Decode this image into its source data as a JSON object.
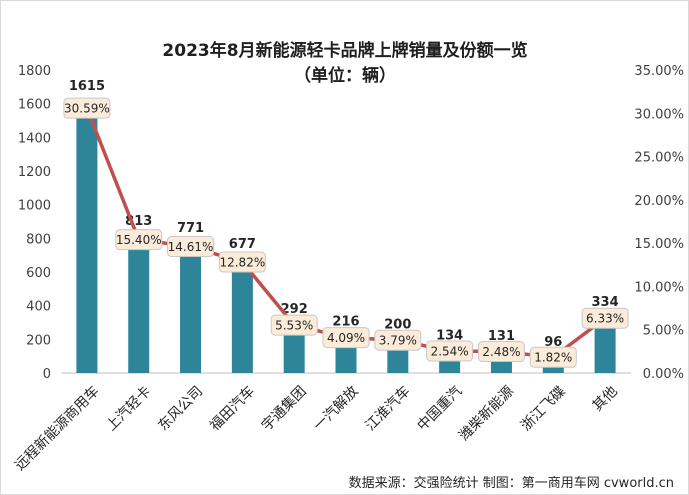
{
  "chart_data": {
    "type": "bar",
    "title": "2023年8月新能源轻卡品牌上牌销量及份额一览",
    "subtitle": "（单位：辆）",
    "categories": [
      "远程新能源商用车",
      "上汽轻卡",
      "东风公司",
      "福田汽车",
      "宇通集团",
      "一汽解放",
      "江淮汽车",
      "中国重汽",
      "潍柴新能源",
      "浙江飞碟",
      "其他"
    ],
    "series": [
      {
        "name": "销量",
        "type": "bar",
        "axis": "left",
        "color": "#2e8599",
        "values": [
          1615,
          813,
          771,
          677,
          292,
          216,
          200,
          134,
          131,
          96,
          334
        ]
      },
      {
        "name": "份额",
        "type": "line",
        "axis": "right",
        "color": "#c0504d",
        "values": [
          30.59,
          15.4,
          14.61,
          12.82,
          5.53,
          4.09,
          3.79,
          2.54,
          2.48,
          1.82,
          6.33
        ],
        "labels": [
          "30.59%",
          "15.40%",
          "14.61%",
          "12.82%",
          "5.53%",
          "4.09%",
          "3.79%",
          "2.54%",
          "2.48%",
          "1.82%",
          "6.33%"
        ]
      }
    ],
    "y_left": {
      "ylim": [
        0,
        1800
      ],
      "ticks": [
        "0",
        "200",
        "400",
        "600",
        "800",
        "1000",
        "1200",
        "1400",
        "1600",
        "1800"
      ]
    },
    "y_right": {
      "ylim": [
        0,
        35
      ],
      "ticks": [
        "0.00%",
        "5.00%",
        "10.00%",
        "15.00%",
        "20.00%",
        "25.00%",
        "30.00%",
        "35.00%"
      ]
    },
    "grid": false,
    "source": "数据来源：交强险统计  制图：第一商用车网 cvworld.cn"
  }
}
